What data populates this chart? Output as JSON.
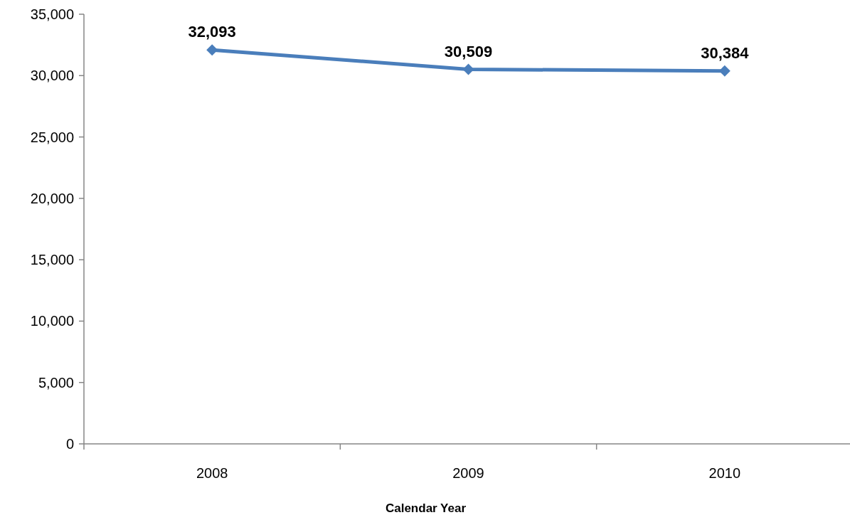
{
  "chart_data": {
    "type": "line",
    "xlabel": "Calendar Year",
    "categories": [
      "2008",
      "2009",
      "2010"
    ],
    "series": [
      {
        "color": "#4a7ebb",
        "values": [
          32093,
          30509,
          30384
        ],
        "value_labels": [
          "32,093",
          "30,509",
          "30,384"
        ]
      }
    ],
    "ylim": [
      0,
      35000
    ],
    "yticks": [
      {
        "value": 0,
        "label": "0"
      },
      {
        "value": 5000,
        "label": "5,000"
      },
      {
        "value": 10000,
        "label": "10,000"
      },
      {
        "value": 15000,
        "label": "15,000"
      },
      {
        "value": 20000,
        "label": "20,000"
      },
      {
        "value": 25000,
        "label": "25,000"
      },
      {
        "value": 30000,
        "label": "30,000"
      },
      {
        "value": 35000,
        "label": "35,000"
      }
    ],
    "marker": "diamond",
    "grid": false
  }
}
